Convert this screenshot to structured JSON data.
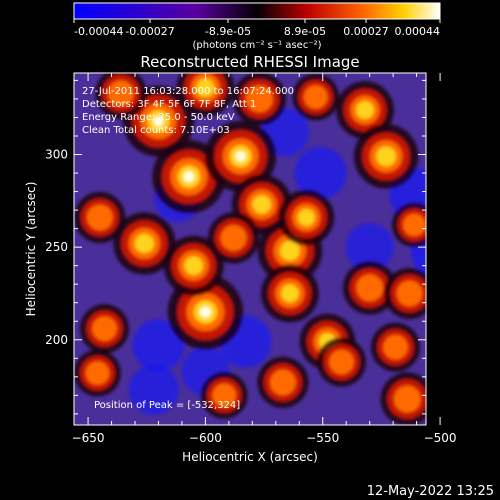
{
  "colorbar": {
    "tick_labels": [
      "-0.00044",
      "-0.00027",
      "-8.9e-05",
      "8.9e-05",
      "0.00027",
      "0.00044"
    ],
    "unit_label": "(photons cm⁻² s⁻¹ asec⁻²)",
    "range": [
      -0.00044,
      0.00044
    ]
  },
  "plot": {
    "title": "Reconstructed RHESSI Image",
    "info_lines": [
      "27-Jul-2011 16:03:28.000 to 16:07:24.000",
      "Detectors: 3F 4F 5F 6F 7F 8F, Att 1",
      "Energy Range: 25.0 - 50.0 keV",
      "Clean     Total counts: 7.10E+03"
    ],
    "peak_label": "Position of Peak = [-532,324]"
  },
  "footer": {
    "timestamp": "12-May-2022 13:25"
  },
  "chart_data": {
    "type": "heatmap",
    "title": "Reconstructed RHESSI Image",
    "xlabel": "Heliocentric X (arcsec)",
    "ylabel": "Heliocentric Y (arcsec)",
    "xlim": [
      -656,
      -506
    ],
    "ylim": [
      154,
      344
    ],
    "x_ticks": [
      -650,
      -600,
      -550,
      -500
    ],
    "y_ticks": [
      200,
      250,
      300
    ],
    "colorbar_range": [
      -0.00044,
      0.00044
    ],
    "peak": {
      "x": -532,
      "y": 324
    },
    "hot_spots": [
      {
        "x": -620,
        "y": 318,
        "value": 0.0004
      },
      {
        "x": -607,
        "y": 288,
        "value": 0.00042
      },
      {
        "x": -585,
        "y": 299,
        "value": 0.0004
      },
      {
        "x": -576,
        "y": 273,
        "value": 0.0003
      },
      {
        "x": -600,
        "y": 215,
        "value": 0.00044
      },
      {
        "x": -626,
        "y": 252,
        "value": 0.00032
      },
      {
        "x": -605,
        "y": 240,
        "value": 0.0003
      },
      {
        "x": -564,
        "y": 248,
        "value": 0.00034
      },
      {
        "x": -557,
        "y": 266,
        "value": 0.00026
      },
      {
        "x": -564,
        "y": 225,
        "value": 0.00028
      },
      {
        "x": -548,
        "y": 199,
        "value": 0.00026
      },
      {
        "x": -532,
        "y": 324,
        "value": 0.00028
      },
      {
        "x": -523,
        "y": 299,
        "value": 0.00034
      },
      {
        "x": -530,
        "y": 228,
        "value": 0.00024
      },
      {
        "x": -513,
        "y": 225,
        "value": 0.00022
      },
      {
        "x": -519,
        "y": 196,
        "value": 0.0002
      },
      {
        "x": -514,
        "y": 168,
        "value": 0.00024
      },
      {
        "x": -567,
        "y": 177,
        "value": 0.00022
      },
      {
        "x": -542,
        "y": 188,
        "value": 0.0002
      },
      {
        "x": -592,
        "y": 170,
        "value": 0.00018
      },
      {
        "x": -643,
        "y": 206,
        "value": 0.0002
      },
      {
        "x": -646,
        "y": 182,
        "value": 0.00018
      },
      {
        "x": -645,
        "y": 266,
        "value": 0.00022
      },
      {
        "x": -636,
        "y": 333,
        "value": 0.00022
      },
      {
        "x": -600,
        "y": 336,
        "value": 0.00028
      },
      {
        "x": -577,
        "y": 330,
        "value": 0.00024
      },
      {
        "x": -553,
        "y": 331,
        "value": 0.00018
      },
      {
        "x": -511,
        "y": 262,
        "value": 0.00016
      },
      {
        "x": -588,
        "y": 255,
        "value": 0.00022
      }
    ],
    "cold_spots": [
      {
        "x": -500,
        "y": 248,
        "value": -0.0003
      },
      {
        "x": -510,
        "y": 278,
        "value": -0.00026
      },
      {
        "x": -551,
        "y": 290,
        "value": -0.00024
      },
      {
        "x": -583,
        "y": 199,
        "value": -0.00024
      },
      {
        "x": -620,
        "y": 197,
        "value": -0.00024
      },
      {
        "x": -622,
        "y": 173,
        "value": -0.00022
      },
      {
        "x": -566,
        "y": 312,
        "value": -0.0002
      },
      {
        "x": -530,
        "y": 250,
        "value": -0.0002
      },
      {
        "x": -612,
        "y": 276,
        "value": -0.00018
      },
      {
        "x": -600,
        "y": 183,
        "value": -0.0002
      }
    ]
  }
}
